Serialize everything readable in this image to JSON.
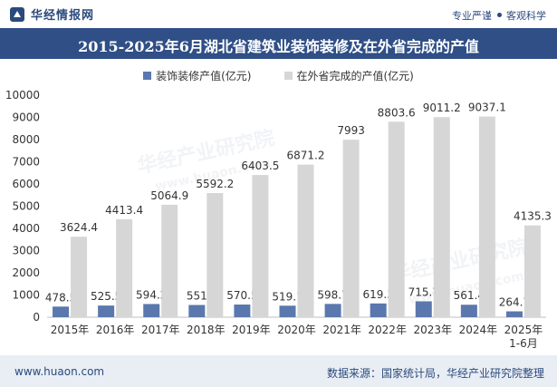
{
  "header": {
    "brand": "华经情报网",
    "slogan_1": "专业严谨",
    "slogan_2": "客观科学"
  },
  "title": "2015-2025年6月湖北省建筑业装饰装修及在外省完成的产值",
  "footer": {
    "url": "www.huaon.com",
    "source": "数据来源：国家统计局，华经产业研究院整理"
  },
  "watermark": {
    "text_1": "华经产业研究院",
    "text_2": "www.huaon.com"
  },
  "colors": {
    "series_1": "#5a78ad",
    "series_2": "#d6d6d6",
    "title_bg": "#2f4f86",
    "brand": "#2b4a7c"
  },
  "chart_data": {
    "type": "bar",
    "categories": [
      "2015年",
      "2016年",
      "2017年",
      "2018年",
      "2019年",
      "2020年",
      "2021年",
      "2022年",
      "2023年",
      "2024年",
      "2025年\n1-6月"
    ],
    "series": [
      {
        "name": "装饰装修产值(亿元)",
        "values": [
          478.5,
          525.5,
          594.2,
          551,
          570.5,
          519.1,
          598.7,
          619.3,
          715.7,
          561.4,
          264.7
        ]
      },
      {
        "name": "在外省完成的产值(亿元)",
        "values": [
          3624.4,
          4413.4,
          5064.9,
          5592.2,
          6403.5,
          6871.2,
          7993,
          8803.6,
          9011.2,
          9037.1,
          4135.3
        ]
      }
    ],
    "series_1_labels": [
      "478.5",
      "525.5",
      "594.2",
      "551",
      "570.5",
      "519.1",
      "598.7",
      "619.3",
      "715.7",
      "561.4",
      "264.7"
    ],
    "series_2_labels": [
      "3624.4",
      "4413.4",
      "5064.9",
      "5592.2",
      "6403.5",
      "6871.2",
      "7993",
      "8803.6",
      "9011.2",
      "9037.1",
      "4135.3"
    ],
    "yticks": [
      "0",
      "1000",
      "2000",
      "3000",
      "4000",
      "5000",
      "6000",
      "7000",
      "8000",
      "9000",
      "10000"
    ],
    "ylim": [
      0,
      10000
    ],
    "grid": false,
    "legend": "top-center"
  }
}
